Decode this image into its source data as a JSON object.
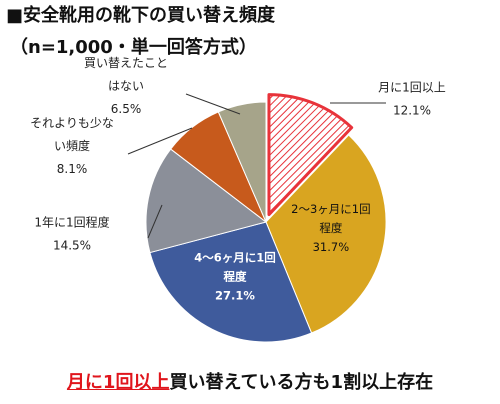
{
  "header": {
    "title": "■安全靴用の靴下の買い替え頻度",
    "subtitle": "（n=1,000・単一回答方式）"
  },
  "footer": {
    "highlight": "月に1回以上",
    "rest": "買い替えている方も1割以上存在"
  },
  "chart_data": {
    "type": "pie",
    "title": "■安全靴用の靴下の買い替え頻度",
    "subtitle": "（n=1,000・単一回答方式）",
    "slices": [
      {
        "label": "月に1回以上",
        "lines": [
          "月に1回以上"
        ],
        "value": 12.1,
        "value_label": "12.1%",
        "color": "#e8333a",
        "pattern": "hatched",
        "highlighted": true
      },
      {
        "label": "2〜3ヶ月に1回程度",
        "lines": [
          "2〜3ヶ月に1回",
          "程度"
        ],
        "value": 31.7,
        "value_label": "31.7%",
        "color": "#d9a520"
      },
      {
        "label": "4〜6ヶ月に1回程度",
        "lines": [
          "4〜6ヶ月に1回",
          "程度"
        ],
        "value": 27.1,
        "value_label": "27.1%",
        "color": "#3f5b9c"
      },
      {
        "label": "1年に1回程度",
        "lines": [
          "1年に1回程度"
        ],
        "value": 14.5,
        "value_label": "14.5%",
        "color": "#8b8f99"
      },
      {
        "label": "それよりも少ない頻度",
        "lines": [
          "それよりも少な",
          "い頻度"
        ],
        "value": 8.1,
        "value_label": "8.1%",
        "color": "#c75a1c"
      },
      {
        "label": "買い替えたことはない",
        "lines": [
          "買い替えたこと",
          "はない"
        ],
        "value": 6.5,
        "value_label": "6.5%",
        "color": "#a6a48a"
      }
    ]
  }
}
